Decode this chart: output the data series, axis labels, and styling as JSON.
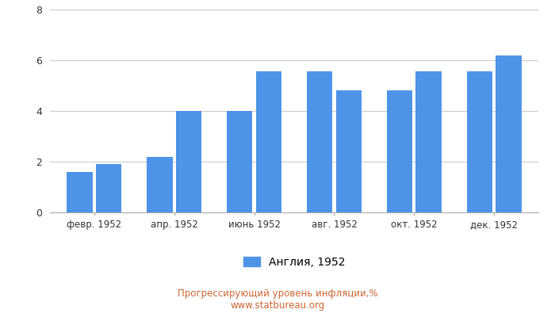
{
  "categories": [
    "февр. 1952",
    "апр. 1952",
    "июнь 1952",
    "авг. 1952",
    "окт. 1952",
    "дек. 1952"
  ],
  "values_pairs": [
    [
      1.6,
      1.9
    ],
    [
      2.2,
      4.0
    ],
    [
      4.0,
      5.55
    ],
    [
      5.55,
      4.8
    ],
    [
      4.8,
      5.55
    ],
    [
      5.55,
      6.2
    ]
  ],
  "bar_color": "#4D94E8",
  "ylim": [
    0,
    8
  ],
  "yticks": [
    0,
    2,
    4,
    6,
    8
  ],
  "legend_label": "Англия, 1952",
  "title_line1": "Прогрессирующий уровень инфляции,%",
  "title_line2": "www.statbureau.org",
  "title_color": "#CC6633",
  "background_color": "#FFFFFF",
  "grid_color": "#CCCCCC"
}
